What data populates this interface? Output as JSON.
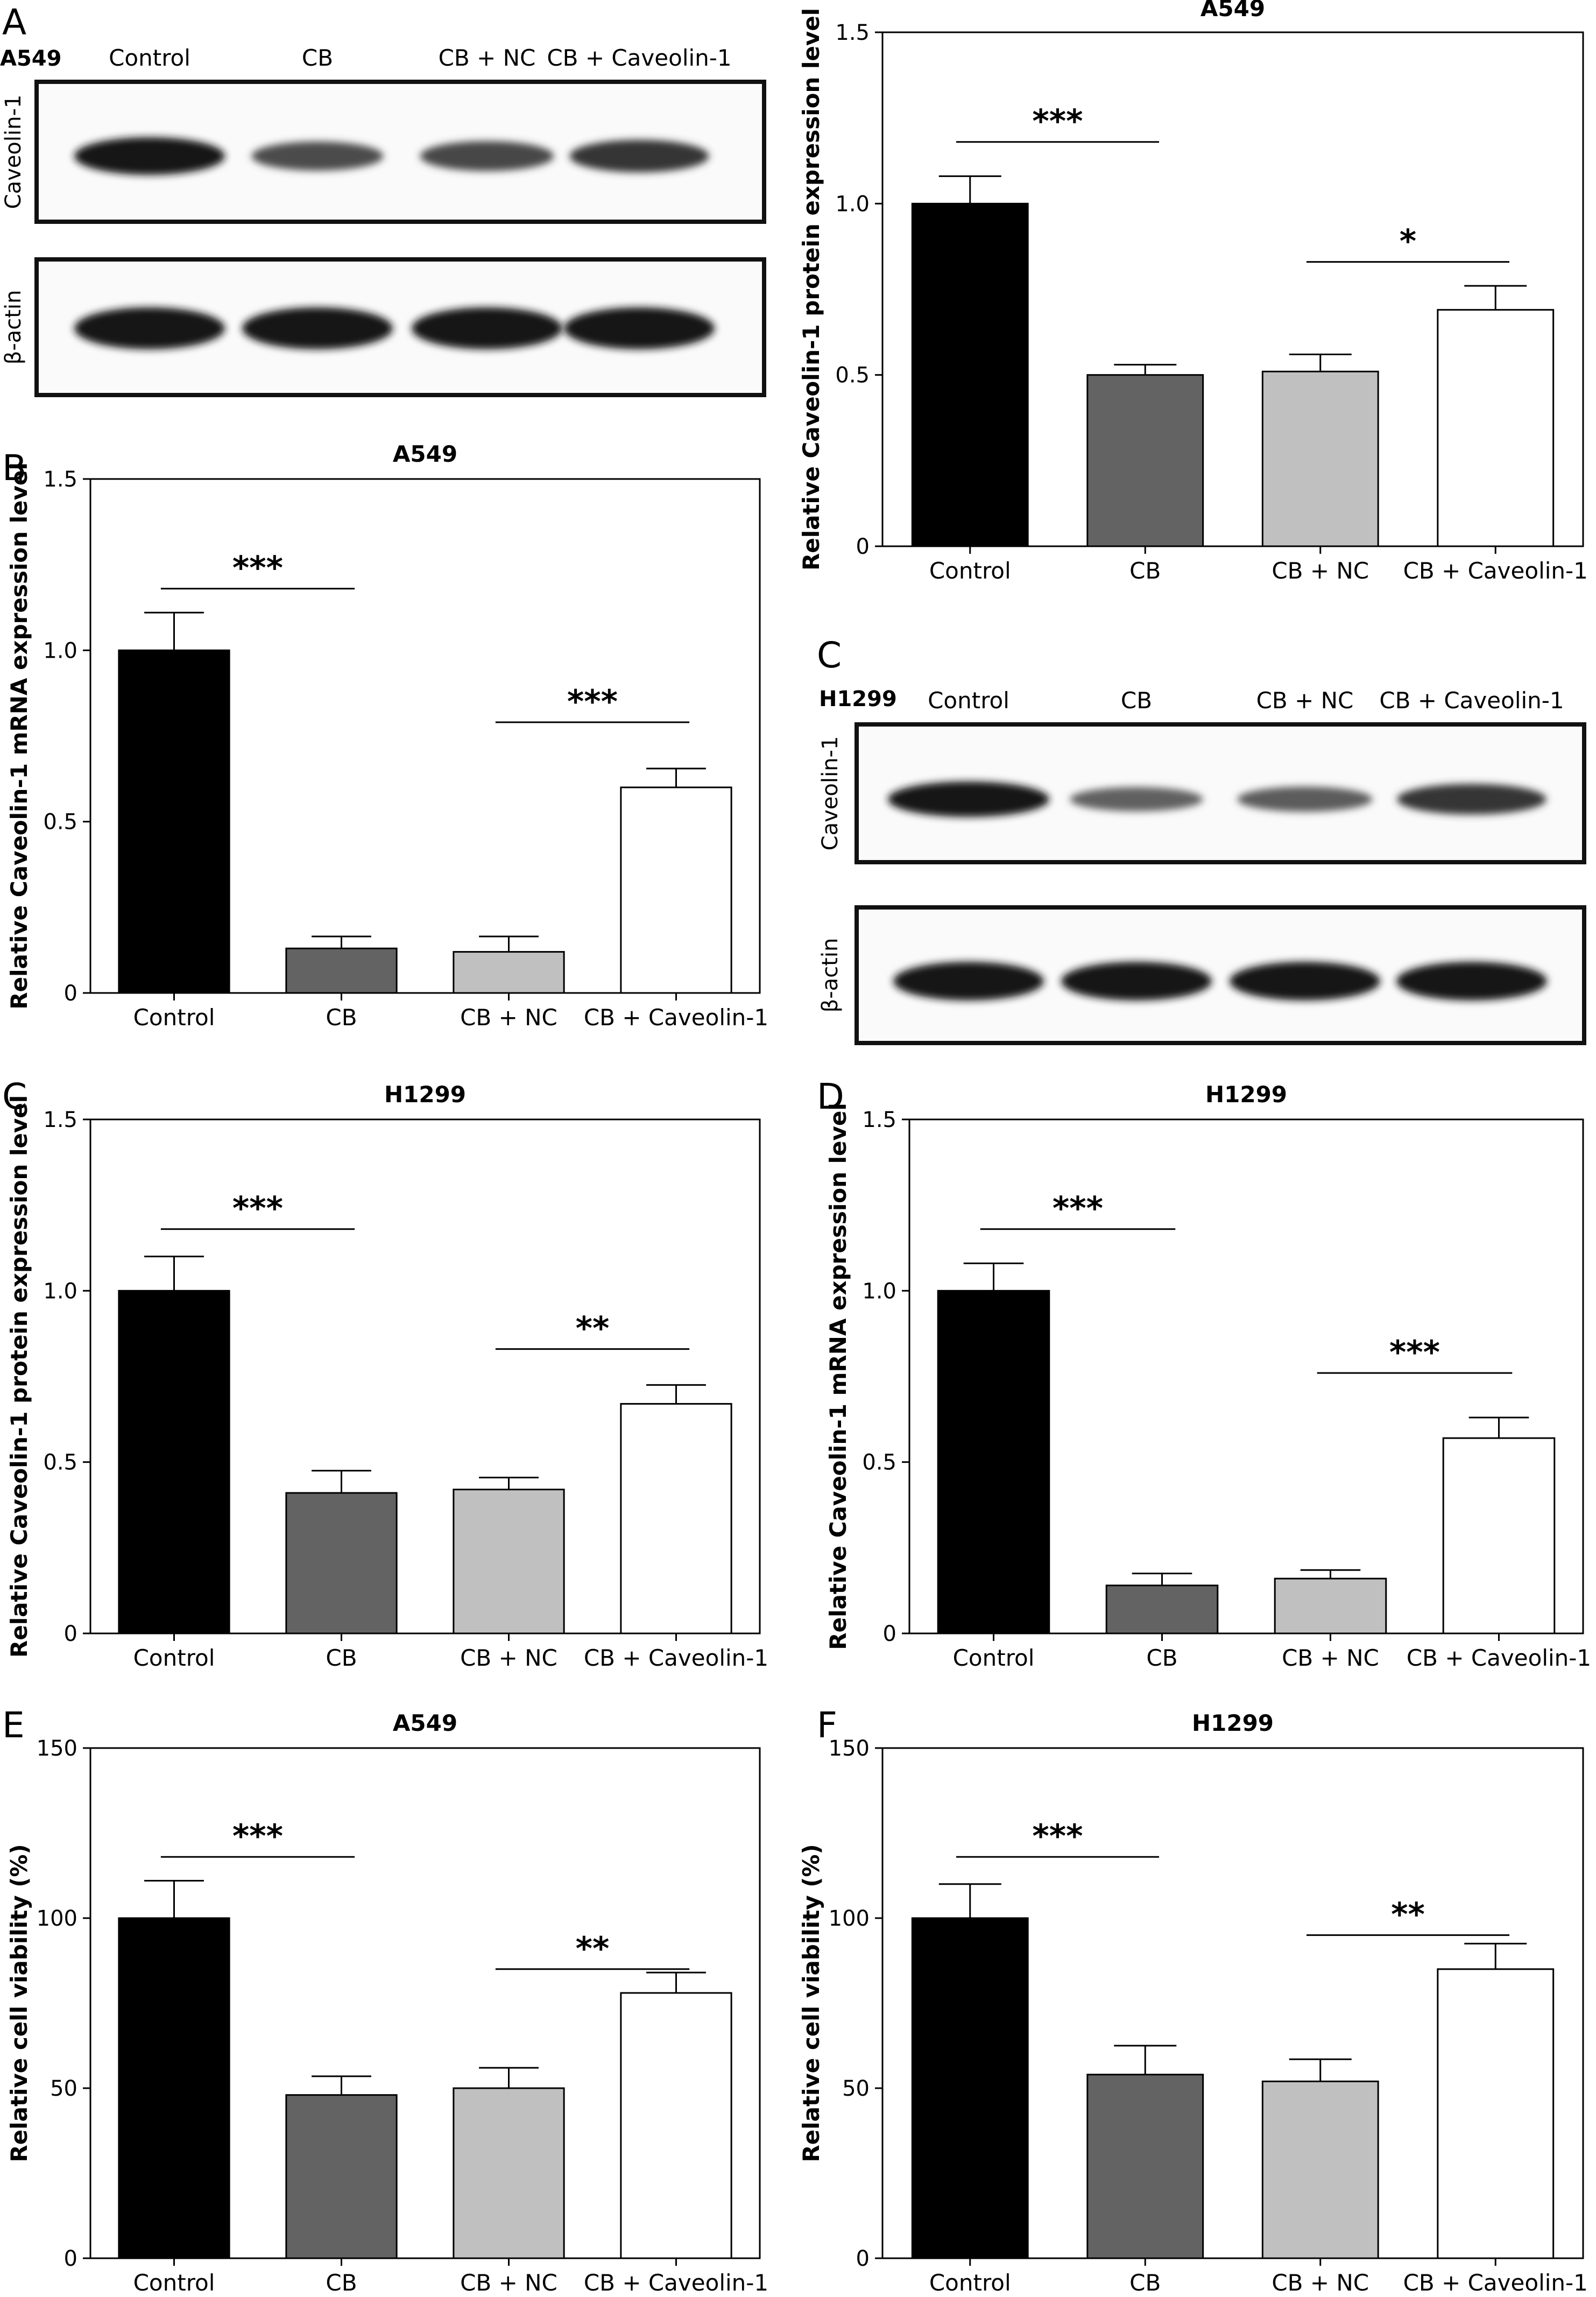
{
  "figure": {
    "panel_letters": [
      "A",
      "B",
      "C",
      "C",
      "D",
      "E",
      "F"
    ]
  },
  "blots": [
    {
      "cell_line": "A549",
      "lanes": [
        "Control",
        "CB",
        "CB + NC",
        "CB + Caveolin-1"
      ],
      "rows": [
        {
          "label": "Caveolin-1",
          "intensity": [
            1.0,
            0.5,
            0.55,
            0.7
          ]
        },
        {
          "label": "β-actin",
          "intensity": [
            1.0,
            1.0,
            1.0,
            1.0
          ]
        }
      ]
    },
    {
      "cell_line": "H1299",
      "lanes": [
        "Control",
        "CB",
        "CB + NC",
        "CB + Caveolin-1"
      ],
      "rows": [
        {
          "label": "Caveolin-1",
          "intensity": [
            1.0,
            0.3,
            0.35,
            0.7
          ]
        },
        {
          "label": "β-actin",
          "intensity": [
            1.0,
            1.0,
            1.0,
            1.0
          ]
        }
      ]
    }
  ],
  "chart_data": [
    {
      "id": "a549-protein",
      "type": "bar",
      "title": "A549",
      "ylabel": "Relative Caveolin-1 protein expression level",
      "categories": [
        "Control",
        "CB",
        "CB + NC",
        "CB + Caveolin-1"
      ],
      "values": [
        1.0,
        0.5,
        0.51,
        0.69
      ],
      "errors": [
        0.08,
        0.03,
        0.05,
        0.07
      ],
      "ylim": [
        0,
        1.5
      ],
      "yticks": [
        "0",
        "0.5",
        "1.0",
        "1.5"
      ],
      "bar_colors": [
        "#000000",
        "#636363",
        "#c0c0c0",
        "#ffffff"
      ],
      "significance": [
        {
          "from": 0,
          "to": 1,
          "label": "***",
          "y": 1.18
        },
        {
          "from": 2,
          "to": 3,
          "label": "*",
          "y": 0.83
        }
      ]
    },
    {
      "id": "a549-mrna",
      "type": "bar",
      "title": "A549",
      "ylabel": "Relative Caveolin-1 mRNA expression level",
      "categories": [
        "Control",
        "CB",
        "CB + NC",
        "CB + Caveolin-1"
      ],
      "values": [
        1.0,
        0.13,
        0.12,
        0.6
      ],
      "errors": [
        0.11,
        0.035,
        0.045,
        0.055
      ],
      "ylim": [
        0,
        1.5
      ],
      "yticks": [
        "0",
        "0.5",
        "1.0",
        "1.5"
      ],
      "bar_colors": [
        "#000000",
        "#636363",
        "#c0c0c0",
        "#ffffff"
      ],
      "significance": [
        {
          "from": 0,
          "to": 1,
          "label": "***",
          "y": 1.18
        },
        {
          "from": 2,
          "to": 3,
          "label": "***",
          "y": 0.79
        }
      ]
    },
    {
      "id": "h1299-protein",
      "type": "bar",
      "title": "H1299",
      "ylabel": "Relative Caveolin-1 protein expression level",
      "categories": [
        "Control",
        "CB",
        "CB + NC",
        "CB + Caveolin-1"
      ],
      "values": [
        1.0,
        0.41,
        0.42,
        0.67
      ],
      "errors": [
        0.1,
        0.065,
        0.035,
        0.055
      ],
      "ylim": [
        0,
        1.5
      ],
      "yticks": [
        "0",
        "0.5",
        "1.0",
        "1.5"
      ],
      "bar_colors": [
        "#000000",
        "#636363",
        "#c0c0c0",
        "#ffffff"
      ],
      "significance": [
        {
          "from": 0,
          "to": 1,
          "label": "***",
          "y": 1.18
        },
        {
          "from": 2,
          "to": 3,
          "label": "**",
          "y": 0.83
        }
      ]
    },
    {
      "id": "h1299-mrna",
      "type": "bar",
      "title": "H1299",
      "ylabel": "Relative Caveolin-1 mRNA expression level",
      "categories": [
        "Control",
        "CB",
        "CB + NC",
        "CB + Caveolin-1"
      ],
      "values": [
        1.0,
        0.14,
        0.16,
        0.57
      ],
      "errors": [
        0.08,
        0.035,
        0.025,
        0.06
      ],
      "ylim": [
        0,
        1.5
      ],
      "yticks": [
        "0",
        "0.5",
        "1.0",
        "1.5"
      ],
      "bar_colors": [
        "#000000",
        "#636363",
        "#c0c0c0",
        "#ffffff"
      ],
      "significance": [
        {
          "from": 0,
          "to": 1,
          "label": "***",
          "y": 1.18
        },
        {
          "from": 2,
          "to": 3,
          "label": "***",
          "y": 0.76
        }
      ]
    },
    {
      "id": "a549-viability",
      "type": "bar",
      "title": "A549",
      "ylabel": "Relative cell viability (%)",
      "categories": [
        "Control",
        "CB",
        "CB + NC",
        "CB + Caveolin-1"
      ],
      "values": [
        100,
        48,
        50,
        78
      ],
      "errors": [
        11,
        5.5,
        6,
        6
      ],
      "ylim": [
        0,
        150
      ],
      "yticks": [
        "0",
        "50",
        "100",
        "150"
      ],
      "bar_colors": [
        "#000000",
        "#636363",
        "#c0c0c0",
        "#ffffff"
      ],
      "significance": [
        {
          "from": 0,
          "to": 1,
          "label": "***",
          "y": 118
        },
        {
          "from": 2,
          "to": 3,
          "label": "**",
          "y": 85
        }
      ]
    },
    {
      "id": "h1299-viability",
      "type": "bar",
      "title": "H1299",
      "ylabel": "Relative cell viability (%)",
      "categories": [
        "Control",
        "CB",
        "CB + NC",
        "CB + Caveolin-1"
      ],
      "values": [
        100,
        54,
        52,
        85
      ],
      "errors": [
        10,
        8.5,
        6.5,
        7.5
      ],
      "ylim": [
        0,
        150
      ],
      "yticks": [
        "0",
        "50",
        "100",
        "150"
      ],
      "bar_colors": [
        "#000000",
        "#636363",
        "#c0c0c0",
        "#ffffff"
      ],
      "significance": [
        {
          "from": 0,
          "to": 1,
          "label": "***",
          "y": 118
        },
        {
          "from": 2,
          "to": 3,
          "label": "**",
          "y": 95
        }
      ]
    }
  ]
}
